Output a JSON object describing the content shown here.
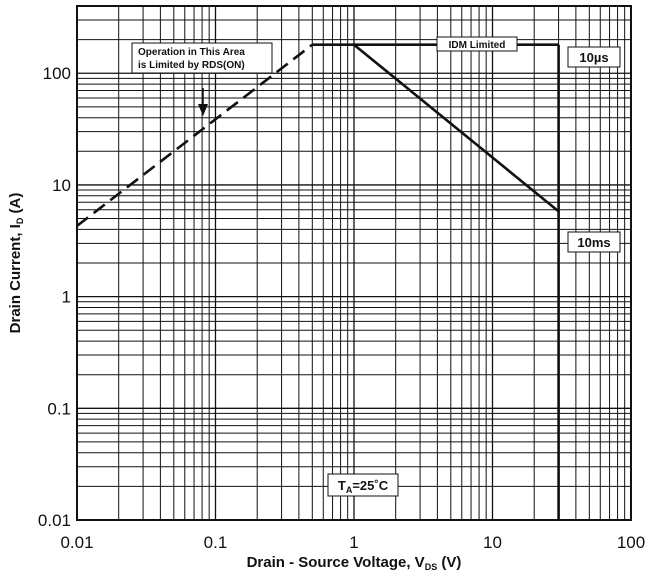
{
  "chart_data": {
    "type": "line",
    "xlabel": "Drain - Source Voltage, V",
    "xlabel_sub": "DS",
    "xlabel_unit": " (V)",
    "ylabel": "Drain Current, I",
    "ylabel_sub": "D",
    "ylabel_unit": " (A)",
    "x_scale": "log",
    "y_scale": "log",
    "xlim": [
      0.01,
      100
    ],
    "ylim": [
      0.01,
      400
    ],
    "x_ticks": [
      0.01,
      0.1,
      1,
      10,
      100
    ],
    "x_tick_labels": [
      "0.01",
      "0.1",
      "1",
      "10",
      "100"
    ],
    "y_ticks": [
      0.01,
      0.1,
      1,
      10,
      100
    ],
    "y_tick_labels": [
      "0.01",
      "0.1",
      "1",
      "10",
      "100"
    ],
    "grid": true,
    "series": [
      {
        "style": "dashed",
        "x": [
          0.01,
          0.5
        ],
        "y": [
          4.3,
          180
        ]
      },
      {
        "style": "solid",
        "x": [
          0.5,
          30
        ],
        "y": [
          180,
          180
        ]
      },
      {
        "style": "solid",
        "x": [
          1,
          30
        ],
        "y": [
          180,
          5.8
        ]
      },
      {
        "style": "solid",
        "x": [
          30,
          30
        ],
        "y": [
          180,
          0.01
        ]
      }
    ],
    "annotations": {
      "rds_line1": "Operation in This Area",
      "rds_line2": "is Limited by RDS(ON)",
      "idm": "IDM Limited",
      "t10us": "10µs",
      "t10ms": "10ms",
      "ta_main": "T",
      "ta_sub": "A",
      "ta_rest": "=25˚C"
    }
  }
}
